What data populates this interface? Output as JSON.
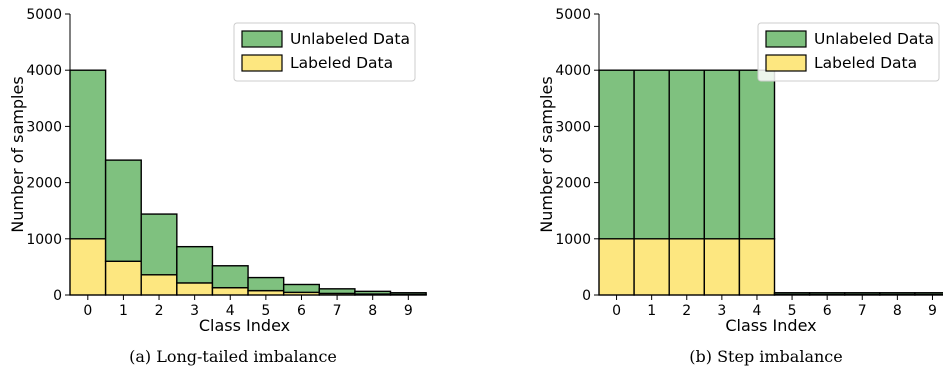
{
  "colors": {
    "unlabeled": "#7fc17f",
    "labeled": "#fde780",
    "edge": "#000000"
  },
  "chart_data": [
    {
      "type": "bar",
      "stacked": true,
      "caption": "(a) Long-tailed imbalance",
      "xlabel": "Class Index",
      "ylabel": "Number of samples",
      "categories": [
        "0",
        "1",
        "2",
        "3",
        "4",
        "5",
        "6",
        "7",
        "8",
        "9"
      ],
      "ylim": [
        0,
        5000
      ],
      "yticks": [
        "0",
        "1000",
        "2000",
        "3000",
        "4000",
        "5000"
      ],
      "series": [
        {
          "name": "Labeled Data",
          "values": [
            1000,
            600,
            360,
            215,
            130,
            78,
            47,
            28,
            17,
            10
          ]
        },
        {
          "name": "Unlabeled Data",
          "values": [
            3000,
            1800,
            1080,
            645,
            390,
            232,
            140,
            82,
            48,
            30
          ]
        }
      ],
      "legend": "top-right",
      "grid": false
    },
    {
      "type": "bar",
      "stacked": true,
      "caption": "(b) Step imbalance",
      "xlabel": "Class Index",
      "ylabel": "Number of samples",
      "categories": [
        "0",
        "1",
        "2",
        "3",
        "4",
        "5",
        "6",
        "7",
        "8",
        "9"
      ],
      "ylim": [
        0,
        5000
      ],
      "yticks": [
        "0",
        "1000",
        "2000",
        "3000",
        "4000",
        "5000"
      ],
      "series": [
        {
          "name": "Labeled Data",
          "values": [
            1000,
            1000,
            1000,
            1000,
            1000,
            10,
            10,
            10,
            10,
            10
          ]
        },
        {
          "name": "Unlabeled Data",
          "values": [
            3000,
            3000,
            3000,
            3000,
            3000,
            30,
            30,
            30,
            30,
            30
          ]
        }
      ],
      "legend": "top-right",
      "grid": false
    }
  ]
}
